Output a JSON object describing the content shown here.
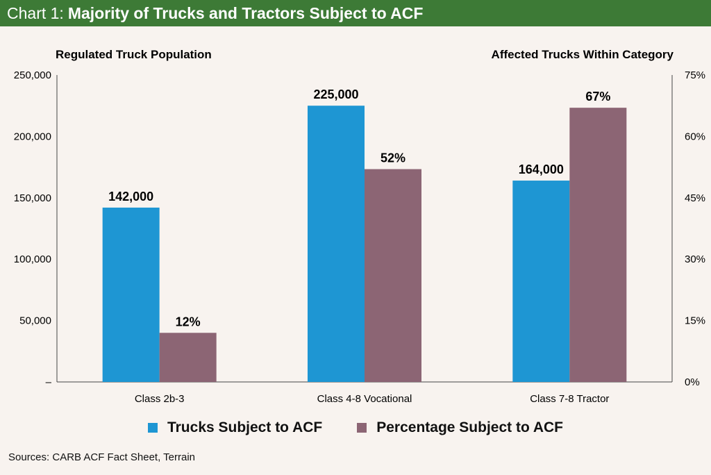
{
  "header": {
    "prefix": "Chart 1:",
    "title": "Majority of Trucks and Tractors Subject to ACF"
  },
  "colors": {
    "header_bg": "#3d7a36",
    "trucks": "#1e96d3",
    "percentage": "#8c6574"
  },
  "chart_data": {
    "type": "bar",
    "categories": [
      "Class 2b-3",
      "Class 4-8 Vocational",
      "Class 7-8 Tractor"
    ],
    "series": [
      {
        "name": "Trucks Subject to ACF",
        "axis": "left",
        "values": [
          142000,
          225000,
          164000
        ],
        "labels": [
          "142,000",
          "225,000",
          "164,000"
        ]
      },
      {
        "name": "Percentage Subject to ACF",
        "axis": "right",
        "values": [
          12,
          52,
          67
        ],
        "labels": [
          "12%",
          "52%",
          "67%"
        ]
      }
    ],
    "ylabel_left": "Regulated Truck Population",
    "ylabel_right": "Affected Trucks Within Category",
    "ylim_left": [
      0,
      250000
    ],
    "ylim_right": [
      0,
      75
    ],
    "left_ticks": [
      "–",
      "50,000",
      "100,000",
      "150,000",
      "200,000",
      "250,000"
    ],
    "right_ticks": [
      "0%",
      "15%",
      "30%",
      "45%",
      "60%",
      "75%"
    ],
    "grid": false,
    "legend_position": "bottom"
  },
  "source": "Sources: CARB ACF Fact Sheet, Terrain"
}
